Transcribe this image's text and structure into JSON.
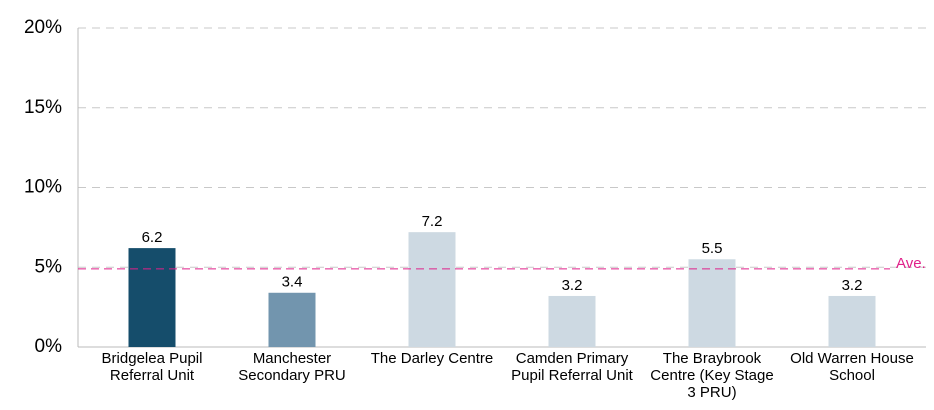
{
  "chart_data": {
    "type": "bar",
    "categories": [
      "Bridgelea Pupil Referral Unit",
      "Manchester Secondary PRU",
      "The Darley Centre",
      "Camden Primary Pupil Referral Unit",
      "The Braybrook Centre (Key Stage 3 PRU)",
      "Old Warren House School"
    ],
    "values": [
      6.2,
      3.4,
      7.2,
      3.2,
      5.5,
      3.2
    ],
    "colors": [
      "#154d6b",
      "#7295ae",
      "#cdd9e2",
      "#cdd9e2",
      "#cdd9e2",
      "#cdd9e2"
    ],
    "ylim": [
      0,
      20
    ],
    "yticks": [
      {
        "value": 0,
        "label": "0%"
      },
      {
        "value": 5,
        "label": "5%"
      },
      {
        "value": 10,
        "label": "10%"
      },
      {
        "value": 15,
        "label": "15%"
      },
      {
        "value": 20,
        "label": "20%"
      }
    ],
    "grid": true,
    "average": {
      "value": 4.9,
      "label": "Ave.",
      "color": "#e0218a"
    }
  }
}
